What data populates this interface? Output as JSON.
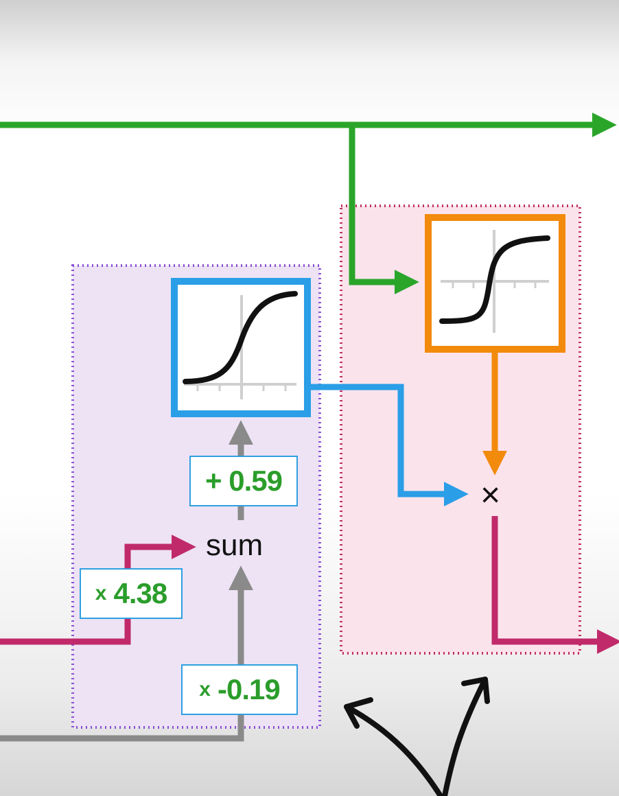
{
  "colors": {
    "green": "#2aa52a",
    "magenta": "#c02a6a",
    "gray": "#8a8a8a",
    "blue": "#2a9ee6",
    "orange": "#f28a0c",
    "purple_box_fill": "#ede3f5",
    "purple_box_border": "#8b4fd6",
    "pink_box_fill": "#fbe3ec",
    "pink_box_border": "#c0305a"
  },
  "labels": {
    "bias": "+ 0.59",
    "weight_top_prefix": "x",
    "weight_top_value": "4.38",
    "weight_bottom_prefix": "x",
    "weight_bottom_value": "-0.19",
    "sum": "sum",
    "multiply": "×"
  },
  "icons": {
    "blue_activation": "sigmoid-curve-icon",
    "orange_activation": "tanh-curve-icon"
  }
}
